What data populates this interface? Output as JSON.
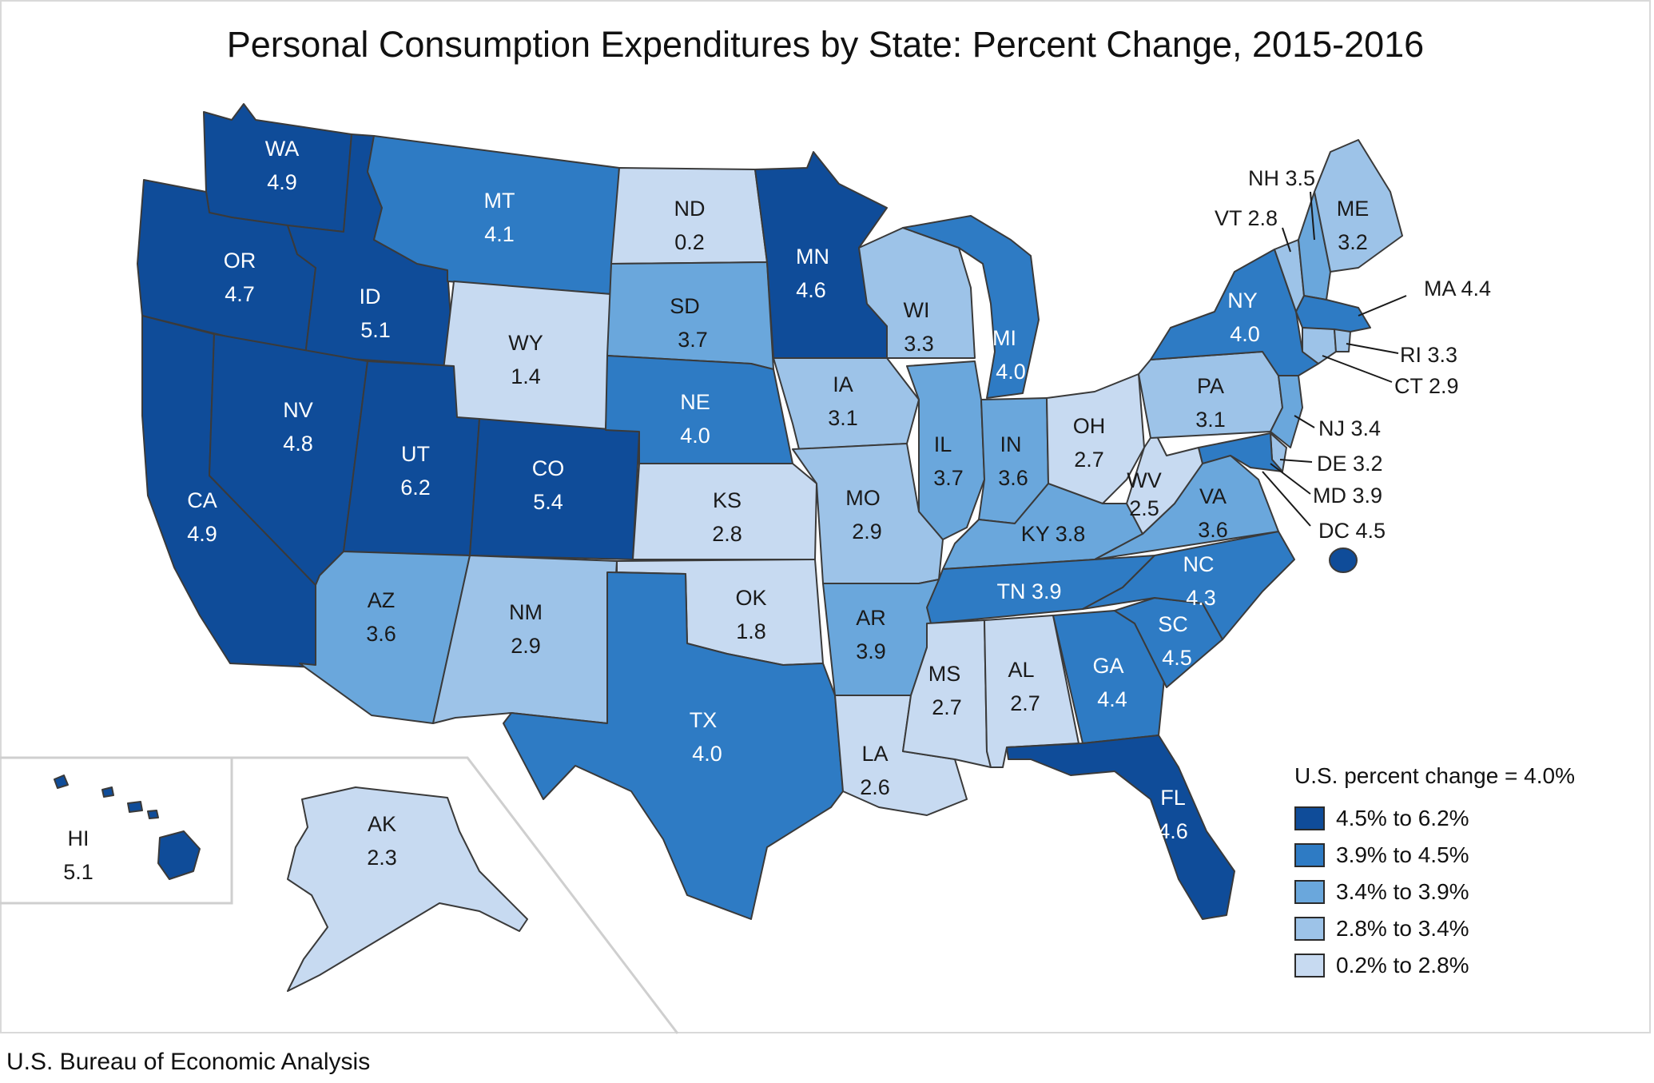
{
  "title": "Personal Consumption Expenditures by State: Percent Change, 2015-2016",
  "source": "U.S. Bureau of Economic Analysis",
  "legend": {
    "title": "U.S. percent change = 4.0%",
    "items": [
      {
        "label": "4.5% to 6.2%",
        "color": "#0f4c99"
      },
      {
        "label": "3.9% to 4.5%",
        "color": "#2e7bc4"
      },
      {
        "label": "3.4% to 3.9%",
        "color": "#6aa7dc"
      },
      {
        "label": "2.8% to 3.4%",
        "color": "#9dc3e8"
      },
      {
        "label": "0.2% to 2.8%",
        "color": "#c7daf1"
      }
    ]
  },
  "states": {
    "WA": {
      "name": "WA",
      "value": "4.9"
    },
    "OR": {
      "name": "OR",
      "value": "4.7"
    },
    "CA": {
      "name": "CA",
      "value": "4.9"
    },
    "ID": {
      "name": "ID",
      "value": "5.1"
    },
    "NV": {
      "name": "NV",
      "value": "4.8"
    },
    "MT": {
      "name": "MT",
      "value": "4.1"
    },
    "WY": {
      "name": "WY",
      "value": "1.4"
    },
    "UT": {
      "name": "UT",
      "value": "6.2"
    },
    "CO": {
      "name": "CO",
      "value": "5.4"
    },
    "AZ": {
      "name": "AZ",
      "value": "3.6"
    },
    "NM": {
      "name": "NM",
      "value": "2.9"
    },
    "ND": {
      "name": "ND",
      "value": "0.2"
    },
    "SD": {
      "name": "SD",
      "value": "3.7"
    },
    "NE": {
      "name": "NE",
      "value": "4.0"
    },
    "KS": {
      "name": "KS",
      "value": "2.8"
    },
    "OK": {
      "name": "OK",
      "value": "1.8"
    },
    "TX": {
      "name": "TX",
      "value": "4.0"
    },
    "MN": {
      "name": "MN",
      "value": "4.6"
    },
    "IA": {
      "name": "IA",
      "value": "3.1"
    },
    "MO": {
      "name": "MO",
      "value": "2.9"
    },
    "AR": {
      "name": "AR",
      "value": "3.9"
    },
    "LA": {
      "name": "LA",
      "value": "2.6"
    },
    "WI": {
      "name": "WI",
      "value": "3.3"
    },
    "IL": {
      "name": "IL",
      "value": "3.7"
    },
    "MI": {
      "name": "MI",
      "value": "4.0"
    },
    "IN": {
      "name": "IN",
      "value": "3.6"
    },
    "OH": {
      "name": "OH",
      "value": "2.7"
    },
    "KY": {
      "name": "KY",
      "value": "3.8"
    },
    "TN": {
      "name": "TN",
      "value": "3.9"
    },
    "MS": {
      "name": "MS",
      "value": "2.7"
    },
    "AL": {
      "name": "AL",
      "value": "2.7"
    },
    "GA": {
      "name": "GA",
      "value": "4.4"
    },
    "FL": {
      "name": "FL",
      "value": "4.6"
    },
    "SC": {
      "name": "SC",
      "value": "4.5"
    },
    "NC": {
      "name": "NC",
      "value": "4.3"
    },
    "VA": {
      "name": "VA",
      "value": "3.6"
    },
    "WV": {
      "name": "WV",
      "value": "2.5"
    },
    "PA": {
      "name": "PA",
      "value": "3.1"
    },
    "NY": {
      "name": "NY",
      "value": "4.0"
    },
    "ME": {
      "name": "ME",
      "value": "3.2"
    },
    "HI": {
      "name": "HI",
      "value": "5.1"
    },
    "AK": {
      "name": "AK",
      "value": "2.3"
    }
  },
  "callouts": {
    "NH": "NH 3.5",
    "VT": "VT 2.8",
    "MA": "MA 4.4",
    "RI": "RI 3.3",
    "CT": "CT 2.9",
    "NJ": "NJ 3.4",
    "DE": "DE 3.2",
    "MD": "MD 3.9",
    "DC": "DC 4.5"
  }
}
